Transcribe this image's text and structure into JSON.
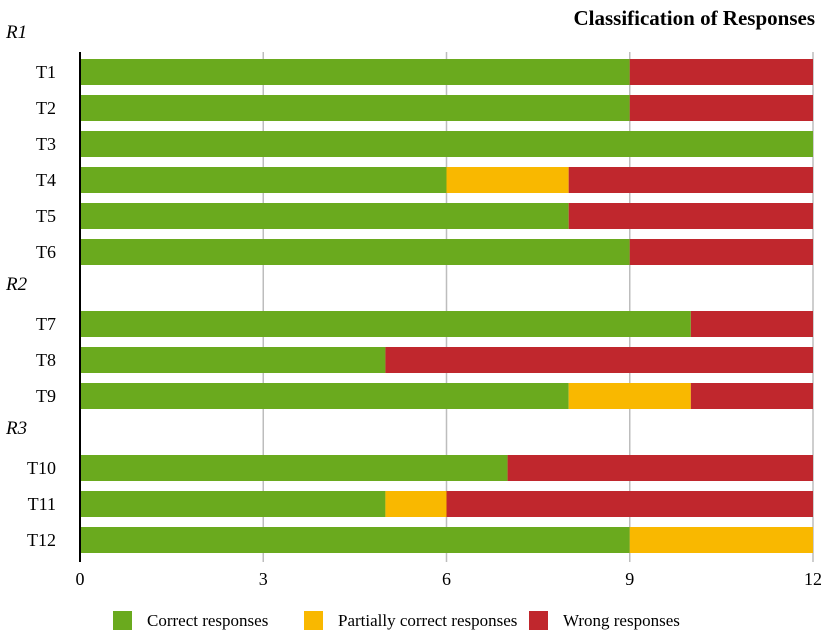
{
  "chart_data": {
    "type": "bar",
    "orientation": "horizontal",
    "stacked": true,
    "title": "Classification of Responses",
    "xlim": [
      0,
      12
    ],
    "xticks": [
      0,
      3,
      6,
      9,
      12
    ],
    "grid": true,
    "legend_position": "bottom",
    "groups": [
      {
        "label": "R1",
        "categories": [
          "T1",
          "T2",
          "T3",
          "T4",
          "T5",
          "T6"
        ]
      },
      {
        "label": "R2",
        "categories": [
          "T7",
          "T8",
          "T9"
        ]
      },
      {
        "label": "R3",
        "categories": [
          "T10",
          "T11",
          "T12"
        ]
      }
    ],
    "categories": [
      "T1",
      "T2",
      "T3",
      "T4",
      "T5",
      "T6",
      "T7",
      "T8",
      "T9",
      "T10",
      "T11",
      "T12"
    ],
    "series": [
      {
        "name": "Correct responses",
        "color": "#6aaa1e",
        "values": [
          9,
          9,
          12,
          6,
          8,
          9,
          10,
          5,
          8,
          7,
          5,
          9
        ]
      },
      {
        "name": "Partially correct responses",
        "color": "#f9b800",
        "values": [
          0,
          0,
          0,
          2,
          0,
          0,
          0,
          0,
          2,
          0,
          1,
          3
        ]
      },
      {
        "name": "Wrong responses",
        "color": "#c0272d",
        "values": [
          3,
          3,
          0,
          4,
          4,
          3,
          2,
          7,
          2,
          5,
          6,
          0
        ]
      }
    ]
  }
}
